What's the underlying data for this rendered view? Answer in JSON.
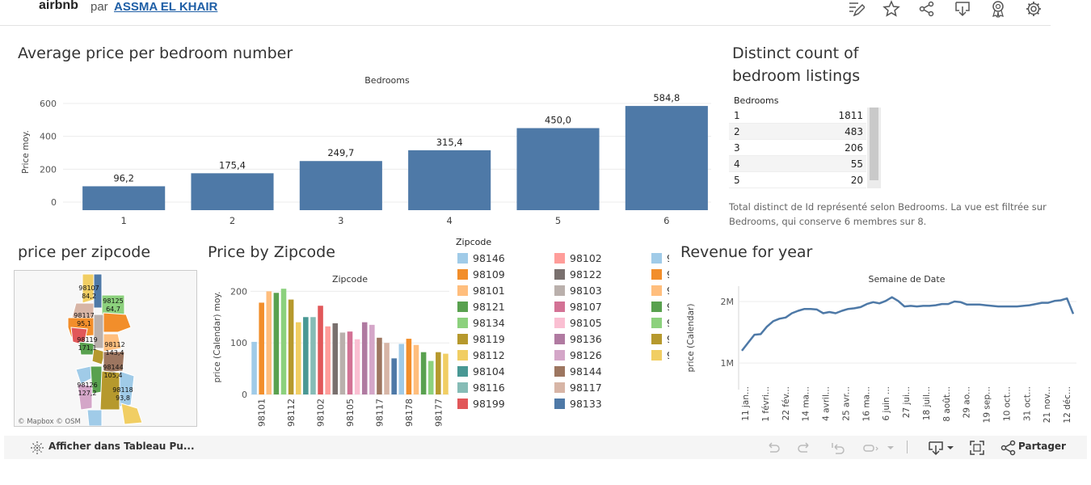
{
  "header": {
    "brand": "airbnb",
    "par": "par",
    "author": "ASSMA EL KHAIR",
    "icons": [
      "edit-icon",
      "star-icon",
      "share-icon",
      "download-icon",
      "badge-icon",
      "gear-icon"
    ]
  },
  "sheets": {
    "bedroom_title": "Average price per bedroom number",
    "count_title_line1": "Distinct count of",
    "count_title_line2": "bedroom listings",
    "map_title": "price per zipcode",
    "zip_title": "Price by Zipcode",
    "revenue_title": "Revenue for year"
  },
  "count_table": {
    "header": "Bedrooms",
    "rows": [
      {
        "k": "1",
        "v": "1811"
      },
      {
        "k": "2",
        "v": "483"
      },
      {
        "k": "3",
        "v": "206"
      },
      {
        "k": "4",
        "v": "55"
      },
      {
        "k": "5",
        "v": "20"
      }
    ],
    "caption": "Total distinct de Id représenté selon Bedrooms. La vue est filtrée sur Bedrooms, qui conserve 6 membres sur 8."
  },
  "map": {
    "attribution": "© Mapbox  © OSM",
    "labels": [
      {
        "zip": "98107",
        "val": "84,2"
      },
      {
        "zip": "98125",
        "val": "64,7"
      },
      {
        "zip": "98117",
        "val": "95,1"
      },
      {
        "zip": "98119",
        "val": "171,1"
      },
      {
        "zip": "98112",
        "val": "143,4"
      },
      {
        "zip": "98144",
        "val": "105,4"
      },
      {
        "zip": "98126",
        "val": "127,2"
      },
      {
        "zip": "98118",
        "val": "93,8"
      }
    ]
  },
  "legend": {
    "title": "Zipcode",
    "col1": [
      {
        "zip": "98146",
        "color": "#a0cbe8"
      },
      {
        "zip": "98109",
        "color": "#f28e2b"
      },
      {
        "zip": "98101",
        "color": "#ffbe7d"
      },
      {
        "zip": "98121",
        "color": "#59a14f"
      },
      {
        "zip": "98134",
        "color": "#8cd17d"
      },
      {
        "zip": "98119",
        "color": "#b6992d"
      },
      {
        "zip": "98112",
        "color": "#f1ce63"
      },
      {
        "zip": "98104",
        "color": "#499894"
      },
      {
        "zip": "98116",
        "color": "#86bcb6"
      },
      {
        "zip": "98199",
        "color": "#e15759"
      }
    ],
    "col2": [
      {
        "zip": "98102",
        "color": "#ff9d9a"
      },
      {
        "zip": "98122",
        "color": "#79706e"
      },
      {
        "zip": "98103",
        "color": "#bab0ac"
      },
      {
        "zip": "98107",
        "color": "#d37295"
      },
      {
        "zip": "98105",
        "color": "#fabfd2"
      },
      {
        "zip": "98136",
        "color": "#b07aa1"
      },
      {
        "zip": "98126",
        "color": "#d4a6c8"
      },
      {
        "zip": "98144",
        "color": "#9d7660"
      },
      {
        "zip": "98117",
        "color": "#d7b5a6"
      },
      {
        "zip": "98133",
        "color": "#4e79a7"
      }
    ],
    "col3": [
      {
        "zip": "9",
        "color": "#a0cbe8"
      },
      {
        "zip": "9",
        "color": "#f28e2b"
      },
      {
        "zip": "9",
        "color": "#ffbe7d"
      },
      {
        "zip": "9",
        "color": "#59a14f"
      },
      {
        "zip": "9",
        "color": "#8cd17d"
      },
      {
        "zip": "9",
        "color": "#b6992d"
      },
      {
        "zip": "9",
        "color": "#f1ce63"
      }
    ]
  },
  "footer": {
    "view_label": "Afficher dans Tableau Pu...",
    "share_label": "Partager"
  },
  "chart_data": [
    {
      "type": "bar",
      "title": "Bedrooms",
      "ylabel": "Price moy.",
      "categories": [
        "1",
        "2",
        "3",
        "4",
        "5",
        "6"
      ],
      "values": [
        96.2,
        175.4,
        249.7,
        315.4,
        450.0,
        584.8
      ],
      "data_labels": [
        "96,2",
        "175,4",
        "249,7",
        "315,4",
        "450,0",
        "584,8"
      ],
      "yticks": [
        "0",
        "200",
        "400",
        "600"
      ],
      "ylim": [
        0,
        600
      ],
      "color": "#4e79a7",
      "grid": true
    },
    {
      "type": "bar",
      "title": "Zipcode",
      "ylabel": "price (Calendar) moy.",
      "yticks": [
        "0",
        "100",
        "200"
      ],
      "ylim": [
        0,
        210
      ],
      "xtick_labels": [
        "98101",
        "98112",
        "98102",
        "98105",
        "98117",
        "98178",
        "98177"
      ],
      "values": [
        102,
        178,
        200,
        197,
        205,
        184,
        140,
        150,
        150,
        172,
        132,
        138,
        120,
        122,
        107,
        140,
        135,
        110,
        100,
        70,
        98,
        108,
        96,
        82,
        65,
        82,
        79
      ],
      "colors": [
        "#a0cbe8",
        "#f28e2b",
        "#ffbe7d",
        "#59a14f",
        "#8cd17d",
        "#b6992d",
        "#f1ce63",
        "#499894",
        "#86bcb6",
        "#e15759",
        "#ff9d9a",
        "#79706e",
        "#bab0ac",
        "#d37295",
        "#fabfd2",
        "#b07aa1",
        "#d4a6c8",
        "#9d7660",
        "#d7b5a6",
        "#4e79a7",
        "#a0cbe8",
        "#f28e2b",
        "#ffbe7d",
        "#59a14f",
        "#8cd17d",
        "#b6992d",
        "#f1ce63"
      ]
    },
    {
      "type": "line",
      "title": "Semaine de Date",
      "ylabel": "price (Calendar)",
      "yticks": [
        "1M",
        "2M"
      ],
      "ylim": [
        700000,
        2250000
      ],
      "xtick_labels": [
        "11 jan...",
        "1 févri...",
        "22 fév...",
        "14 ma...",
        "4 avril...",
        "25 avr...",
        "16 ma...",
        "6 juin ...",
        "27 jui...",
        "18 juil...",
        "8 août...",
        "29 ao...",
        "19 sep...",
        "10 oct...",
        "31 oct...",
        "21 nov...",
        "12 déc..."
      ],
      "values": [
        1200000,
        1330000,
        1460000,
        1470000,
        1590000,
        1680000,
        1720000,
        1740000,
        1810000,
        1850000,
        1880000,
        1880000,
        1870000,
        1810000,
        1830000,
        1810000,
        1850000,
        1880000,
        1890000,
        1910000,
        1960000,
        1990000,
        1970000,
        2010000,
        2070000,
        2010000,
        1920000,
        1930000,
        1920000,
        1930000,
        1930000,
        1940000,
        1960000,
        1960000,
        2000000,
        1990000,
        1950000,
        1950000,
        1950000,
        1940000,
        1930000,
        1920000,
        1920000,
        1920000,
        1920000,
        1930000,
        1940000,
        1960000,
        1980000,
        1980000,
        2010000,
        2020000,
        2050000,
        1800000
      ],
      "color": "#4e79a7"
    }
  ]
}
